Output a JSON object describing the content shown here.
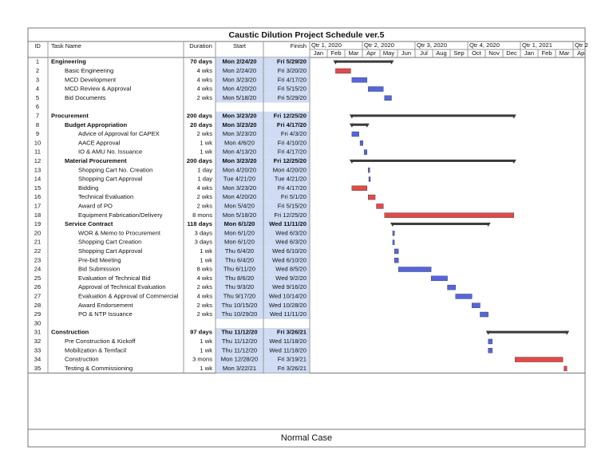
{
  "header": {
    "title": "Caustic Dilution Project Schedule ver.5",
    "columns": [
      "ID",
      "Task Name",
      "Duration",
      "Start",
      "Finish"
    ],
    "quarters": [
      "Qtr 1, 2020",
      "Qtr 2, 2020",
      "Qtr 3, 2020",
      "Qtr 4, 2020",
      "Qtr 1, 2021",
      "Qtr 2"
    ],
    "months": [
      "Jan",
      "Feb",
      "Mar",
      "Apr",
      "May",
      "Jun",
      "Jul",
      "Aug",
      "Sep",
      "Oct",
      "Nov",
      "Dec",
      "Jan",
      "Feb",
      "Mar",
      "Apr"
    ]
  },
  "bar_colors": {
    "summary": "#3a3a3a",
    "critical": "#e24a4a",
    "normal": "#5566dd"
  },
  "table": {
    "rows": [
      {
        "id": "1",
        "name": "Engineering",
        "duration": "70 days",
        "start": "Mon 2/24/20",
        "finish": "Fri 5/29/20",
        "level": 0,
        "kind": "summary"
      },
      {
        "id": "2",
        "name": "Basic Engineering",
        "duration": "4 wks",
        "start": "Mon 2/24/20",
        "finish": "Fri 3/20/20",
        "level": 1,
        "kind": "critical"
      },
      {
        "id": "3",
        "name": "MCD Development",
        "duration": "4 wks",
        "start": "Mon 3/23/20",
        "finish": "Fri 4/17/20",
        "level": 1,
        "kind": "normal"
      },
      {
        "id": "4",
        "name": "MCD Review & Approval",
        "duration": "4 wks",
        "start": "Mon 4/20/20",
        "finish": "Fri 5/15/20",
        "level": 1,
        "kind": "normal"
      },
      {
        "id": "5",
        "name": "Bid Documents",
        "duration": "2 wks",
        "start": "Mon 5/18/20",
        "finish": "Fri 5/29/20",
        "level": 1,
        "kind": "normal"
      },
      {
        "id": "6"
      },
      {
        "id": "7",
        "name": "Procurement",
        "duration": "200 days",
        "start": "Mon 3/23/20",
        "finish": "Fri 12/25/20",
        "level": 0,
        "kind": "summary"
      },
      {
        "id": "8",
        "name": "Budget Appropriation",
        "duration": "20 days",
        "start": "Mon 3/23/20",
        "finish": "Fri 4/17/20",
        "level": 1,
        "kind": "summary"
      },
      {
        "id": "9",
        "name": "Advice of Approval for CAPEX",
        "duration": "2 wks",
        "start": "Mon 3/23/20",
        "finish": "Fri 4/3/20",
        "level": 2,
        "kind": "normal"
      },
      {
        "id": "10",
        "name": "AACE Approval",
        "duration": "1 wk",
        "start": "Mon 4/6/20",
        "finish": "Fri 4/10/20",
        "level": 2,
        "kind": "normal"
      },
      {
        "id": "11",
        "name": "IO & AMU No. Issuance",
        "duration": "1 wk",
        "start": "Mon 4/13/20",
        "finish": "Fri 4/17/20",
        "level": 2,
        "kind": "normal"
      },
      {
        "id": "12",
        "name": "Material Procurement",
        "duration": "200 days",
        "start": "Mon 3/23/20",
        "finish": "Fri 12/25/20",
        "level": 1,
        "kind": "summary"
      },
      {
        "id": "13",
        "name": "Shopping Cart No. Creation",
        "duration": "1 day",
        "start": "Mon 4/20/20",
        "finish": "Mon 4/20/20",
        "level": 2,
        "kind": "normal"
      },
      {
        "id": "14",
        "name": "Shopping Cart Approval",
        "duration": "1 day",
        "start": "Tue 4/21/20",
        "finish": "Tue 4/21/20",
        "level": 2,
        "kind": "normal"
      },
      {
        "id": "15",
        "name": "Bidding",
        "duration": "4 wks",
        "start": "Mon 3/23/20",
        "finish": "Fri 4/17/20",
        "level": 2,
        "kind": "critical"
      },
      {
        "id": "16",
        "name": "Technical Evaluation",
        "duration": "2 wks",
        "start": "Mon 4/20/20",
        "finish": "Fri 5/1/20",
        "level": 2,
        "kind": "critical"
      },
      {
        "id": "17",
        "name": "Award of PO",
        "duration": "2 wks",
        "start": "Mon 5/4/20",
        "finish": "Fri 5/15/20",
        "level": 2,
        "kind": "critical"
      },
      {
        "id": "18",
        "name": "Equipment Fabrication/Delivery",
        "duration": "8 mons",
        "start": "Mon 5/18/20",
        "finish": "Fri 12/25/20",
        "level": 2,
        "kind": "critical"
      },
      {
        "id": "19",
        "name": "Service Contract",
        "duration": "118 days",
        "start": "Mon 6/1/20",
        "finish": "Wed 11/11/20",
        "level": 1,
        "kind": "summary"
      },
      {
        "id": "20",
        "name": "WOR & Memo to Procurement",
        "duration": "3 days",
        "start": "Mon 6/1/20",
        "finish": "Wed 6/3/20",
        "level": 2,
        "kind": "normal"
      },
      {
        "id": "21",
        "name": "Shopping Cart Creation",
        "duration": "3 days",
        "start": "Mon 6/1/20",
        "finish": "Wed 6/3/20",
        "level": 2,
        "kind": "normal"
      },
      {
        "id": "22",
        "name": "Shopping Cart Approval",
        "duration": "1 wk",
        "start": "Thu 6/4/20",
        "finish": "Wed 6/10/20",
        "level": 2,
        "kind": "normal"
      },
      {
        "id": "23",
        "name": "Pre-bid Meeting",
        "duration": "1 wk",
        "start": "Thu 6/4/20",
        "finish": "Wed 6/10/20",
        "level": 2,
        "kind": "normal"
      },
      {
        "id": "24",
        "name": "Bid Submission",
        "duration": "8 wks",
        "start": "Thu 6/11/20",
        "finish": "Wed 8/5/20",
        "level": 2,
        "kind": "normal"
      },
      {
        "id": "25",
        "name": "Evaluation of Technical Bid",
        "duration": "4 wks",
        "start": "Thu 8/6/20",
        "finish": "Wed 9/2/20",
        "level": 2,
        "kind": "normal"
      },
      {
        "id": "26",
        "name": "Approval of Technical Evaluation",
        "duration": "2 wks",
        "start": "Thu 9/3/20",
        "finish": "Wed 9/16/20",
        "level": 2,
        "kind": "normal"
      },
      {
        "id": "27",
        "name": "Evaluation & Approval of Commercial",
        "duration": "4 wks",
        "start": "Thu 9/17/20",
        "finish": "Wed 10/14/20",
        "level": 2,
        "kind": "normal"
      },
      {
        "id": "28",
        "name": "Award Endorsement",
        "duration": "2 wks",
        "start": "Thu 10/15/20",
        "finish": "Wed 10/28/20",
        "level": 2,
        "kind": "normal"
      },
      {
        "id": "29",
        "name": "PO & NTP Issuance",
        "duration": "2 wks",
        "start": "Thu 10/29/20",
        "finish": "Wed 11/11/20",
        "level": 2,
        "kind": "normal"
      },
      {
        "id": "30"
      },
      {
        "id": "31",
        "name": "Construction",
        "duration": "97 days",
        "start": "Thu 11/12/20",
        "finish": "Fri 3/26/21",
        "level": 0,
        "kind": "summary"
      },
      {
        "id": "32",
        "name": "Pre Construction & Kickoff",
        "duration": "1 wk",
        "start": "Thu 11/12/20",
        "finish": "Wed 11/18/20",
        "level": 1,
        "kind": "normal"
      },
      {
        "id": "33",
        "name": "Mobilization & Temfacil",
        "duration": "1 wk",
        "start": "Thu 11/12/20",
        "finish": "Wed 11/18/20",
        "level": 1,
        "kind": "normal"
      },
      {
        "id": "34",
        "name": "Construction",
        "duration": "3 mons",
        "start": "Mon 12/28/20",
        "finish": "Fri 3/19/21",
        "level": 1,
        "kind": "critical"
      },
      {
        "id": "35",
        "name": "Testing & Commissioning",
        "duration": "1 wk",
        "start": "Mon 3/22/21",
        "finish": "Fri 3/26/21",
        "level": 1,
        "kind": "critical"
      }
    ]
  },
  "footer": "Normal Case"
}
